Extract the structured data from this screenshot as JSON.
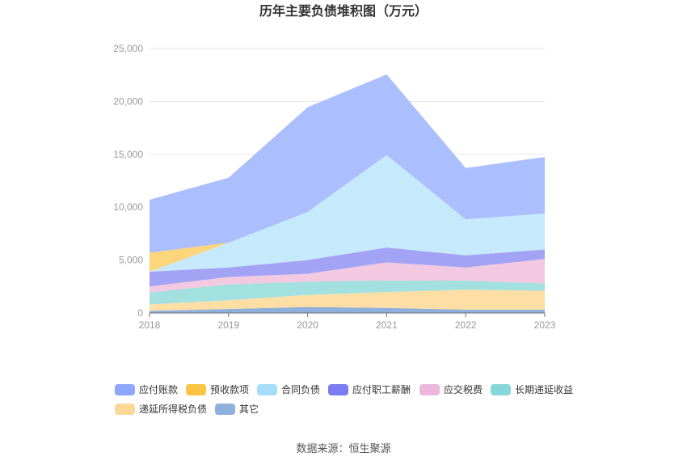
{
  "chart_data": {
    "type": "area",
    "title": "历年主要负债堆积图（万元）",
    "x": [
      "2018",
      "2019",
      "2020",
      "2021",
      "2022",
      "2023"
    ],
    "y_ticks": [
      "0",
      "5,000",
      "10,000",
      "15,000",
      "20,000",
      "25,000"
    ],
    "ylim": [
      0,
      25000
    ],
    "grid": true,
    "legend_position": "bottom",
    "stacked": true,
    "series": [
      {
        "name": "其它",
        "color": "#8fb0dc",
        "values": [
          200,
          380,
          560,
          480,
          320,
          320
        ]
      },
      {
        "name": "递延所得税负债",
        "color": "#fddfa5",
        "values": [
          600,
          820,
          1140,
          1500,
          1880,
          1780
        ]
      },
      {
        "name": "长期递延收益",
        "color": "#a3e0e0",
        "values": [
          1150,
          1500,
          1250,
          1100,
          850,
          700
        ]
      },
      {
        "name": "应交税费",
        "color": "#f2c9e1",
        "values": [
          550,
          700,
          750,
          1700,
          1250,
          2300
        ]
      },
      {
        "name": "应付职工薪酬",
        "color": "#a3a3f5",
        "values": [
          1400,
          900,
          1300,
          1400,
          1150,
          900
        ]
      },
      {
        "name": "合同负债",
        "color": "#c6e9fb",
        "values": [
          0,
          2340,
          4550,
          8750,
          3400,
          3400
        ]
      },
      {
        "name": "预收款项",
        "color": "#fdd57a",
        "values": [
          1800,
          0,
          0,
          0,
          0,
          0
        ]
      },
      {
        "name": "应付账款",
        "color": "#abbffe",
        "values": [
          5000,
          6150,
          9900,
          7620,
          4850,
          5350
        ]
      }
    ]
  },
  "legend": [
    {
      "name": "应付账款",
      "color": "#8ea6fb"
    },
    {
      "name": "预收款项",
      "color": "#fdc342"
    },
    {
      "name": "合同负债",
      "color": "#a6defa"
    },
    {
      "name": "应付职工薪酬",
      "color": "#7b7cf0"
    },
    {
      "name": "应交税费",
      "color": "#ebb8dc"
    },
    {
      "name": "长期递延收益",
      "color": "#86d8d8"
    },
    {
      "name": "递延所得税负债",
      "color": "#fdd898"
    },
    {
      "name": "其它",
      "color": "#8fb0dc"
    }
  ],
  "source": "数据来源：恒生聚源"
}
